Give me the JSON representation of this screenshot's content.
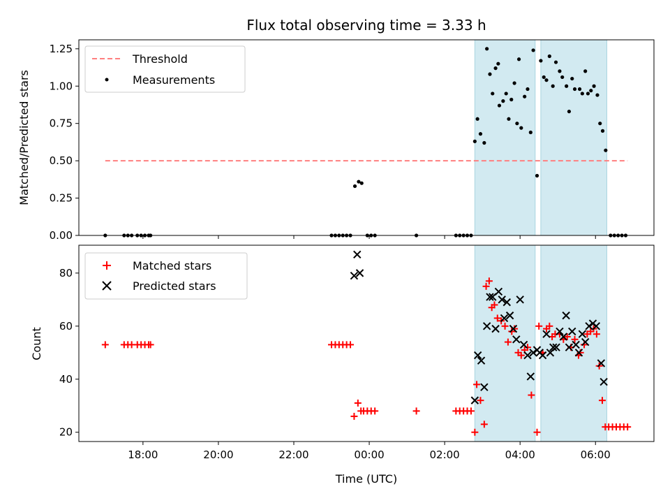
{
  "chart_data": [
    {
      "type": "scatter",
      "title": "Flux total observing time = 3.33 h",
      "xlabel": "",
      "ylabel": "Matched/Predicted stars",
      "xlim": [
        16.3,
        31.55
      ],
      "ylim": [
        0,
        1.31
      ],
      "yticks": [
        0.0,
        0.25,
        0.5,
        0.75,
        1.0,
        1.25
      ],
      "ytick_labels": [
        "0.00",
        "0.25",
        "0.50",
        "0.75",
        "1.00",
        "1.25"
      ],
      "x_time_ticks": [
        18,
        20,
        22,
        24,
        26,
        28,
        30
      ],
      "xtick_labels_shown": false,
      "legend": "top-left",
      "shaded_intervals": [
        [
          26.8,
          28.4
        ],
        [
          28.55,
          30.3
        ]
      ],
      "shade_color": "#add8e6",
      "threshold": {
        "name": "Threshold",
        "x": [
          17.0,
          30.85
        ],
        "y": 0.5,
        "color": "#ff7f7f",
        "dashed": true
      },
      "series": [
        {
          "name": "Measurements",
          "color": "#000000",
          "points": [
            [
              17.0,
              0
            ],
            [
              17.5,
              0
            ],
            [
              17.6,
              0
            ],
            [
              17.7,
              0
            ],
            [
              17.85,
              0
            ],
            [
              17.95,
              0
            ],
            [
              18.05,
              0
            ],
            [
              18.15,
              0
            ],
            [
              18.2,
              0
            ],
            [
              23.0,
              0
            ],
            [
              23.1,
              0
            ],
            [
              23.2,
              0
            ],
            [
              23.3,
              0
            ],
            [
              23.4,
              0
            ],
            [
              23.5,
              0
            ],
            [
              23.62,
              0.33
            ],
            [
              23.72,
              0.36
            ],
            [
              23.8,
              0.35
            ],
            [
              23.95,
              0
            ],
            [
              24.05,
              0
            ],
            [
              24.15,
              0
            ],
            [
              25.25,
              0
            ],
            [
              26.3,
              0
            ],
            [
              26.4,
              0
            ],
            [
              26.5,
              0
            ],
            [
              26.6,
              0
            ],
            [
              26.7,
              0
            ],
            [
              26.8,
              0.63
            ],
            [
              26.87,
              0.78
            ],
            [
              26.95,
              0.68
            ],
            [
              27.05,
              0.62
            ],
            [
              27.12,
              1.25
            ],
            [
              27.2,
              1.08
            ],
            [
              27.27,
              0.95
            ],
            [
              27.35,
              1.12
            ],
            [
              27.42,
              1.15
            ],
            [
              27.45,
              0.87
            ],
            [
              27.55,
              0.9
            ],
            [
              27.63,
              0.95
            ],
            [
              27.7,
              0.78
            ],
            [
              27.77,
              0.91
            ],
            [
              27.85,
              1.02
            ],
            [
              27.92,
              0.75
            ],
            [
              27.97,
              1.18
            ],
            [
              28.03,
              0.72
            ],
            [
              28.12,
              0.93
            ],
            [
              28.2,
              0.98
            ],
            [
              28.28,
              0.69
            ],
            [
              28.35,
              1.24
            ],
            [
              28.45,
              0.4
            ],
            [
              28.55,
              1.17
            ],
            [
              28.63,
              1.06
            ],
            [
              28.7,
              1.04
            ],
            [
              28.78,
              1.2
            ],
            [
              28.87,
              1.0
            ],
            [
              28.95,
              1.16
            ],
            [
              29.05,
              1.1
            ],
            [
              29.12,
              1.06
            ],
            [
              29.23,
              1.0
            ],
            [
              29.3,
              0.83
            ],
            [
              29.38,
              1.05
            ],
            [
              29.45,
              0.98
            ],
            [
              29.58,
              0.98
            ],
            [
              29.65,
              0.95
            ],
            [
              29.73,
              1.1
            ],
            [
              29.8,
              0.95
            ],
            [
              29.88,
              0.97
            ],
            [
              29.96,
              1.0
            ],
            [
              30.05,
              0.94
            ],
            [
              30.12,
              0.75
            ],
            [
              30.19,
              0.7
            ],
            [
              30.27,
              0.57
            ],
            [
              30.4,
              0
            ],
            [
              30.5,
              0
            ],
            [
              30.6,
              0
            ],
            [
              30.7,
              0
            ],
            [
              30.8,
              0
            ]
          ]
        }
      ]
    },
    {
      "type": "scatter",
      "title": "",
      "xlabel": "Time (UTC)",
      "ylabel": "Count",
      "xlim": [
        16.3,
        31.55
      ],
      "ylim": [
        16.5,
        90.5
      ],
      "yticks": [
        20,
        40,
        60,
        80
      ],
      "ytick_labels": [
        "20",
        "40",
        "60",
        "80"
      ],
      "x_time_ticks": [
        18,
        20,
        22,
        24,
        26,
        28,
        30
      ],
      "xtick_labels": [
        "18:00",
        "20:00",
        "22:00",
        "00:00",
        "02:00",
        "04:00",
        "06:00"
      ],
      "legend": "top-left",
      "shaded_intervals": [
        [
          26.8,
          28.4
        ],
        [
          28.55,
          30.3
        ]
      ],
      "shade_color": "#add8e6",
      "series": [
        {
          "name": "Matched stars",
          "marker": "plus",
          "color": "#ff0000",
          "points": [
            [
              17.0,
              53
            ],
            [
              17.5,
              53
            ],
            [
              17.6,
              53
            ],
            [
              17.7,
              53
            ],
            [
              17.85,
              53
            ],
            [
              17.95,
              53
            ],
            [
              18.05,
              53
            ],
            [
              18.15,
              53
            ],
            [
              18.2,
              53
            ],
            [
              23.0,
              53
            ],
            [
              23.1,
              53
            ],
            [
              23.2,
              53
            ],
            [
              23.3,
              53
            ],
            [
              23.4,
              53
            ],
            [
              23.5,
              53
            ],
            [
              23.6,
              26
            ],
            [
              23.7,
              31
            ],
            [
              23.78,
              28
            ],
            [
              23.85,
              28
            ],
            [
              23.95,
              28
            ],
            [
              24.05,
              28
            ],
            [
              24.15,
              28
            ],
            [
              25.25,
              28
            ],
            [
              26.3,
              28
            ],
            [
              26.4,
              28
            ],
            [
              26.5,
              28
            ],
            [
              26.6,
              28
            ],
            [
              26.7,
              28
            ],
            [
              26.8,
              20
            ],
            [
              26.85,
              38
            ],
            [
              26.95,
              32
            ],
            [
              27.05,
              23
            ],
            [
              27.1,
              75
            ],
            [
              27.18,
              77
            ],
            [
              27.25,
              67
            ],
            [
              27.32,
              68
            ],
            [
              27.4,
              63
            ],
            [
              27.5,
              62
            ],
            [
              27.6,
              60
            ],
            [
              27.68,
              54
            ],
            [
              27.78,
              58
            ],
            [
              27.85,
              59
            ],
            [
              27.95,
              50
            ],
            [
              28.03,
              49
            ],
            [
              28.12,
              51
            ],
            [
              28.2,
              52
            ],
            [
              28.3,
              34
            ],
            [
              28.45,
              20
            ],
            [
              28.5,
              60
            ],
            [
              28.6,
              50
            ],
            [
              28.7,
              59
            ],
            [
              28.78,
              60
            ],
            [
              28.85,
              56
            ],
            [
              28.93,
              57
            ],
            [
              29.05,
              57
            ],
            [
              29.15,
              55
            ],
            [
              29.25,
              56
            ],
            [
              29.35,
              52
            ],
            [
              29.45,
              55
            ],
            [
              29.55,
              49
            ],
            [
              29.6,
              50
            ],
            [
              29.7,
              53
            ],
            [
              29.78,
              57
            ],
            [
              29.87,
              58
            ],
            [
              29.95,
              59
            ],
            [
              30.03,
              57
            ],
            [
              30.1,
              45
            ],
            [
              30.18,
              32
            ],
            [
              30.26,
              22
            ],
            [
              30.35,
              22
            ],
            [
              30.45,
              22
            ],
            [
              30.55,
              22
            ],
            [
              30.65,
              22
            ],
            [
              30.75,
              22
            ],
            [
              30.85,
              22
            ]
          ]
        },
        {
          "name": "Predicted stars",
          "marker": "x",
          "color": "#000000",
          "points": [
            [
              23.6,
              79
            ],
            [
              23.68,
              87
            ],
            [
              23.75,
              80
            ],
            [
              26.8,
              32
            ],
            [
              26.88,
              49
            ],
            [
              26.97,
              47
            ],
            [
              27.05,
              37
            ],
            [
              27.12,
              60
            ],
            [
              27.2,
              71
            ],
            [
              27.27,
              71
            ],
            [
              27.35,
              59
            ],
            [
              27.43,
              73
            ],
            [
              27.52,
              70
            ],
            [
              27.58,
              63
            ],
            [
              27.65,
              69
            ],
            [
              27.73,
              64
            ],
            [
              27.82,
              59
            ],
            [
              27.9,
              55
            ],
            [
              28.0,
              70
            ],
            [
              28.1,
              53
            ],
            [
              28.2,
              49
            ],
            [
              28.28,
              41
            ],
            [
              28.35,
              50
            ],
            [
              28.45,
              51
            ],
            [
              28.52,
              50
            ],
            [
              28.6,
              49
            ],
            [
              28.7,
              57
            ],
            [
              28.8,
              50
            ],
            [
              28.88,
              52
            ],
            [
              28.96,
              52
            ],
            [
              29.05,
              58
            ],
            [
              29.15,
              56
            ],
            [
              29.22,
              64
            ],
            [
              29.3,
              52
            ],
            [
              29.38,
              58
            ],
            [
              29.48,
              53
            ],
            [
              29.56,
              50
            ],
            [
              29.65,
              57
            ],
            [
              29.73,
              54
            ],
            [
              29.83,
              60
            ],
            [
              29.93,
              61
            ],
            [
              30.02,
              60
            ],
            [
              30.15,
              46
            ],
            [
              30.22,
              39
            ]
          ]
        }
      ]
    }
  ]
}
